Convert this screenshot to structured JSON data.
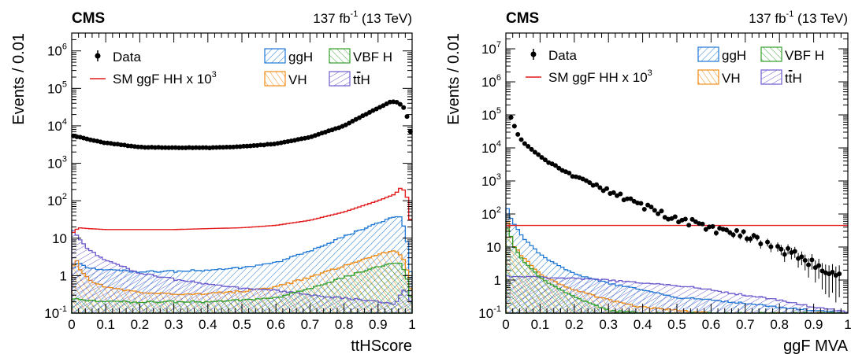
{
  "colors": {
    "data": "#000000",
    "hh": "#e41a1c",
    "ggh": "#1f78d4",
    "vbf": "#33a02c",
    "vh": "#f08c14",
    "tth": "#6a5acd"
  },
  "chart_data": [
    {
      "type": "histogram",
      "scale": "log",
      "cms_label": "CMS",
      "lumi_label": "137 fb",
      "lumi_exp": "-1",
      "lumi_energy": "(13 TeV)",
      "xlabel": "ttHScore",
      "ylabel": "Events / 0.01",
      "xlim": [
        0,
        1
      ],
      "ylim": [
        0.1,
        3000000
      ],
      "x_ticks": [
        "0",
        "0.1",
        "0.2",
        "0.3",
        "0.4",
        "0.5",
        "0.6",
        "0.7",
        "0.8",
        "0.9",
        "1"
      ],
      "y_ticks": [
        {
          "base": "10",
          "exp": "-1",
          "value": 0.1
        },
        {
          "base": "1",
          "exp": "",
          "value": 1
        },
        {
          "base": "10",
          "exp": "",
          "value": 10
        },
        {
          "base": "10",
          "exp": "2",
          "value": 100
        },
        {
          "base": "10",
          "exp": "3",
          "value": 1000
        },
        {
          "base": "10",
          "exp": "4",
          "value": 10000
        },
        {
          "base": "10",
          "exp": "5",
          "value": 100000
        },
        {
          "base": "10",
          "exp": "6",
          "value": 1000000
        }
      ],
      "legend": {
        "data": "Data",
        "hh": "SM ggF HH x 10",
        "hh_exp": "3",
        "ggh": "ggH",
        "vbf": "VBF H",
        "vh": "VH",
        "tth_prefix": "t",
        "tth_bar": "t",
        "tth_suffix": "H"
      },
      "series": [
        {
          "key": "data",
          "x": [
            0,
            0.05,
            0.1,
            0.2,
            0.3,
            0.4,
            0.5,
            0.6,
            0.7,
            0.8,
            0.9,
            0.94,
            0.96,
            0.98,
            1.0
          ],
          "y": [
            5600,
            4300,
            3500,
            2700,
            2600,
            2600,
            2800,
            3300,
            5000,
            10000,
            30000,
            45000,
            42000,
            28000,
            4500
          ]
        },
        {
          "key": "hh",
          "x": [
            0,
            0.02,
            0.05,
            0.1,
            0.2,
            0.3,
            0.4,
            0.5,
            0.6,
            0.7,
            0.8,
            0.9,
            0.95,
            0.97,
            0.99,
            1.0
          ],
          "y": [
            13,
            19,
            18,
            17,
            17,
            17,
            18,
            19,
            22,
            30,
            50,
            100,
            150,
            240,
            100,
            10
          ]
        },
        {
          "key": "ggh",
          "x": [
            0,
            0.02,
            0.05,
            0.1,
            0.2,
            0.3,
            0.4,
            0.5,
            0.6,
            0.7,
            0.8,
            0.9,
            0.95,
            0.97,
            0.99,
            1.0
          ],
          "y": [
            1.5,
            2.4,
            1.6,
            1.4,
            1.3,
            1.3,
            1.4,
            1.6,
            2.2,
            4.5,
            11,
            25,
            38,
            35,
            5,
            0.3
          ]
        },
        {
          "key": "vh",
          "x": [
            0,
            0.01,
            0.03,
            0.06,
            0.1,
            0.2,
            0.3,
            0.4,
            0.5,
            0.6,
            0.7,
            0.8,
            0.9,
            0.95,
            0.97,
            0.99,
            1.0
          ],
          "y": [
            1.2,
            3.0,
            1.2,
            0.7,
            0.5,
            0.35,
            0.32,
            0.33,
            0.38,
            0.5,
            0.9,
            1.8,
            3.6,
            4.8,
            3.5,
            1.0,
            0.2
          ]
        },
        {
          "key": "tth",
          "x": [
            0,
            0.01,
            0.05,
            0.1,
            0.2,
            0.3,
            0.4,
            0.5,
            0.6,
            0.7,
            0.8,
            0.9,
            0.95,
            0.98,
            1.0
          ],
          "y": [
            20,
            14,
            5,
            2.5,
            1.2,
            0.8,
            0.6,
            0.45,
            0.4,
            0.3,
            0.25,
            0.2,
            0.17,
            0.5,
            0.15
          ]
        },
        {
          "key": "vbf",
          "x": [
            0,
            0.02,
            0.05,
            0.1,
            0.2,
            0.3,
            0.4,
            0.5,
            0.6,
            0.7,
            0.8,
            0.9,
            0.95,
            0.97,
            0.99,
            1.0
          ],
          "y": [
            0.25,
            0.25,
            0.22,
            0.2,
            0.2,
            0.2,
            0.2,
            0.22,
            0.25,
            0.45,
            0.9,
            1.7,
            2.2,
            2.0,
            0.6,
            0.12
          ]
        }
      ]
    },
    {
      "type": "histogram",
      "scale": "log",
      "cms_label": "CMS",
      "lumi_label": "137 fb",
      "lumi_exp": "-1",
      "lumi_energy": "(13 TeV)",
      "xlabel": "ggF MVA",
      "ylabel": "Events / 0.01",
      "xlim": [
        0,
        1
      ],
      "ylim": [
        0.1,
        30000000
      ],
      "x_ticks": [
        "0",
        "0.1",
        "0.2",
        "0.3",
        "0.4",
        "0.5",
        "0.6",
        "0.7",
        "0.8",
        "0.9",
        "1"
      ],
      "y_ticks": [
        {
          "base": "10",
          "exp": "-1",
          "value": 0.1
        },
        {
          "base": "1",
          "exp": "",
          "value": 1
        },
        {
          "base": "10",
          "exp": "",
          "value": 10
        },
        {
          "base": "10",
          "exp": "2",
          "value": 100
        },
        {
          "base": "10",
          "exp": "3",
          "value": 1000
        },
        {
          "base": "10",
          "exp": "4",
          "value": 10000
        },
        {
          "base": "10",
          "exp": "5",
          "value": 100000
        },
        {
          "base": "10",
          "exp": "6",
          "value": 1000000
        },
        {
          "base": "10",
          "exp": "7",
          "value": 10000000
        }
      ],
      "legend": {
        "data": "Data",
        "hh": "SM ggF HH x 10",
        "hh_exp": "3",
        "ggh": "ggH",
        "vbf": "VBF H",
        "vh": "VH",
        "tth_prefix": "t",
        "tth_bar": "t",
        "tth_suffix": "H"
      },
      "series": [
        {
          "key": "data",
          "x": [
            0.01,
            0.02,
            0.03,
            0.05,
            0.1,
            0.15,
            0.2,
            0.3,
            0.4,
            0.5,
            0.6,
            0.7,
            0.8,
            0.9,
            1.0
          ],
          "y": [
            100000,
            70000,
            30000,
            15000,
            5500,
            2600,
            1400,
            500,
            180,
            70,
            40,
            25,
            10,
            3,
            1
          ]
        },
        {
          "key": "hh",
          "x": [
            0,
            0.01,
            0.5,
            0.99,
            1.0
          ],
          "y": [
            45,
            45,
            45,
            45,
            45
          ]
        },
        {
          "key": "ggh",
          "x": [
            0,
            0.01,
            0.02,
            0.05,
            0.1,
            0.15,
            0.2,
            0.3,
            0.4,
            0.5,
            0.6,
            0.7,
            0.8,
            0.9,
            1.0
          ],
          "y": [
            200,
            100,
            60,
            20,
            6,
            3,
            1.5,
            0.8,
            0.5,
            0.3,
            0.25,
            0.2,
            0.15,
            0.12,
            0.1
          ]
        },
        {
          "key": "vh",
          "x": [
            0,
            0.01,
            0.02,
            0.05,
            0.1,
            0.15,
            0.2,
            0.3,
            0.4,
            0.5,
            0.6,
            0.7
          ],
          "y": [
            100,
            30,
            12,
            5,
            1.5,
            0.8,
            0.5,
            0.25,
            0.15,
            0.12,
            0.1,
            0.1
          ]
        },
        {
          "key": "vbf",
          "x": [
            0,
            0.01,
            0.02,
            0.05,
            0.1,
            0.15,
            0.2,
            0.3,
            0.4
          ],
          "y": [
            30,
            40,
            12,
            4,
            1.2,
            0.6,
            0.3,
            0.12,
            0.1
          ]
        },
        {
          "key": "tth",
          "x": [
            0,
            0.05,
            0.1,
            0.2,
            0.3,
            0.4,
            0.5,
            0.6,
            0.7,
            0.8,
            0.9,
            1.0
          ],
          "y": [
            1.3,
            1.3,
            1.25,
            1.1,
            1.0,
            0.8,
            0.7,
            0.5,
            0.35,
            0.25,
            0.15,
            0.11
          ]
        }
      ]
    }
  ]
}
